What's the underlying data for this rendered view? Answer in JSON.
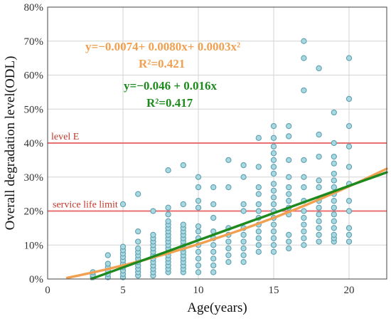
{
  "chart_data": {
    "type": "scatter",
    "xlabel": "Age(years)",
    "ylabel": "Overall degradation level(ODL)",
    "xlim": [
      0,
      22.5
    ],
    "ylim": [
      0,
      0.8
    ],
    "x_ticks": [
      0,
      5,
      10,
      15,
      20
    ],
    "y_ticks": [
      0,
      0.1,
      0.2,
      0.3,
      0.4,
      0.5,
      0.6,
      0.7,
      0.8
    ],
    "x_tick_labels": [
      "0",
      "5",
      "10",
      "15",
      "20"
    ],
    "y_tick_labels": [
      "0%",
      "10%",
      "20%",
      "30%",
      "40%",
      "50%",
      "60%",
      "70%",
      "80%"
    ],
    "grid": true,
    "reference_lines": [
      {
        "label": "level E",
        "y": 0.4,
        "color": "#e87070"
      },
      {
        "label": "service life limit",
        "y": 0.2,
        "color": "#e87070"
      }
    ],
    "fits": [
      {
        "equation": "y=−0.0074+ 0.0080x+ 0.0003x²",
        "r2_label": "R²=0.421",
        "color": "#f0a050",
        "coefficients": [
          -0.0074,
          0.008,
          0.0003
        ],
        "x_range": [
          1.3,
          22.5
        ]
      },
      {
        "equation": "y=−0.046 + 0.016x",
        "r2_label": "R²=0.417",
        "color": "#1e8a1e",
        "coefficients": [
          -0.046,
          0.016
        ],
        "x_range": [
          2.9,
          22.5
        ]
      }
    ],
    "series": [
      {
        "marker_fill": "#a8d8e0",
        "marker_stroke": "#5f9fb0",
        "points": [
          [
            3,
            0.005
          ],
          [
            3,
            0.012
          ],
          [
            3,
            0.02
          ],
          [
            4,
            0.005
          ],
          [
            4,
            0.015
          ],
          [
            4,
            0.025
          ],
          [
            4,
            0.035
          ],
          [
            4,
            0.045
          ],
          [
            4,
            0.07
          ],
          [
            5,
            0.005
          ],
          [
            5,
            0.015
          ],
          [
            5,
            0.025
          ],
          [
            5,
            0.035
          ],
          [
            5,
            0.045
          ],
          [
            5,
            0.055
          ],
          [
            5,
            0.065
          ],
          [
            5,
            0.075
          ],
          [
            5,
            0.085
          ],
          [
            5,
            0.095
          ],
          [
            5,
            0.22
          ],
          [
            6,
            0.01
          ],
          [
            6,
            0.02
          ],
          [
            6,
            0.03
          ],
          [
            6,
            0.04
          ],
          [
            6,
            0.05
          ],
          [
            6,
            0.06
          ],
          [
            6,
            0.07
          ],
          [
            6,
            0.08
          ],
          [
            6,
            0.09
          ],
          [
            6,
            0.11
          ],
          [
            6,
            0.14
          ],
          [
            6,
            0.25
          ],
          [
            7,
            0.01
          ],
          [
            7,
            0.02
          ],
          [
            7,
            0.03
          ],
          [
            7,
            0.04
          ],
          [
            7,
            0.05
          ],
          [
            7,
            0.06
          ],
          [
            7,
            0.07
          ],
          [
            7,
            0.08
          ],
          [
            7,
            0.09
          ],
          [
            7,
            0.1
          ],
          [
            7,
            0.11
          ],
          [
            7,
            0.12
          ],
          [
            7,
            0.13
          ],
          [
            7,
            0.2
          ],
          [
            8,
            0.02
          ],
          [
            8,
            0.03
          ],
          [
            8,
            0.04
          ],
          [
            8,
            0.05
          ],
          [
            8,
            0.06
          ],
          [
            8,
            0.07
          ],
          [
            8,
            0.08
          ],
          [
            8,
            0.09
          ],
          [
            8,
            0.1
          ],
          [
            8,
            0.11
          ],
          [
            8,
            0.12
          ],
          [
            8,
            0.13
          ],
          [
            8,
            0.14
          ],
          [
            8,
            0.15
          ],
          [
            8,
            0.16
          ],
          [
            8,
            0.17
          ],
          [
            8,
            0.19
          ],
          [
            8,
            0.21
          ],
          [
            8,
            0.32
          ],
          [
            9,
            0.02
          ],
          [
            9,
            0.03
          ],
          [
            9,
            0.04
          ],
          [
            9,
            0.05
          ],
          [
            9,
            0.06
          ],
          [
            9,
            0.07
          ],
          [
            9,
            0.08
          ],
          [
            9,
            0.09
          ],
          [
            9,
            0.1
          ],
          [
            9,
            0.11
          ],
          [
            9,
            0.12
          ],
          [
            9,
            0.13
          ],
          [
            9,
            0.14
          ],
          [
            9,
            0.15
          ],
          [
            9,
            0.16
          ],
          [
            9,
            0.22
          ],
          [
            9,
            0.335
          ],
          [
            10,
            0.02
          ],
          [
            10,
            0.04
          ],
          [
            10,
            0.06
          ],
          [
            10,
            0.08
          ],
          [
            10,
            0.1
          ],
          [
            10,
            0.12
          ],
          [
            10,
            0.14
          ],
          [
            10,
            0.155
          ],
          [
            10,
            0.21
          ],
          [
            10,
            0.23
          ],
          [
            10,
            0.27
          ],
          [
            10,
            0.3
          ],
          [
            11,
            0.02
          ],
          [
            11,
            0.04
          ],
          [
            11,
            0.06
          ],
          [
            11,
            0.08
          ],
          [
            11,
            0.1
          ],
          [
            11,
            0.12
          ],
          [
            11,
            0.14
          ],
          [
            11,
            0.18
          ],
          [
            11,
            0.22
          ],
          [
            11,
            0.27
          ],
          [
            12,
            0.05
          ],
          [
            12,
            0.07
          ],
          [
            12,
            0.09
          ],
          [
            12,
            0.11
          ],
          [
            12,
            0.13
          ],
          [
            12,
            0.15
          ],
          [
            12,
            0.27
          ],
          [
            12,
            0.35
          ],
          [
            13,
            0.05
          ],
          [
            13,
            0.07
          ],
          [
            13,
            0.09
          ],
          [
            13,
            0.11
          ],
          [
            13,
            0.13
          ],
          [
            13,
            0.15
          ],
          [
            13,
            0.2
          ],
          [
            13,
            0.22
          ],
          [
            13,
            0.3
          ],
          [
            13,
            0.335
          ],
          [
            14,
            0.08
          ],
          [
            14,
            0.1
          ],
          [
            14,
            0.12
          ],
          [
            14,
            0.14
          ],
          [
            14,
            0.16
          ],
          [
            14,
            0.18
          ],
          [
            14,
            0.2
          ],
          [
            14,
            0.22
          ],
          [
            14,
            0.25
          ],
          [
            14,
            0.27
          ],
          [
            14,
            0.33
          ],
          [
            14,
            0.415
          ],
          [
            15,
            0.08
          ],
          [
            15,
            0.1
          ],
          [
            15,
            0.12
          ],
          [
            15,
            0.14
          ],
          [
            15,
            0.16
          ],
          [
            15,
            0.18
          ],
          [
            15,
            0.2
          ],
          [
            15,
            0.22
          ],
          [
            15,
            0.24
          ],
          [
            15,
            0.26
          ],
          [
            15,
            0.28
          ],
          [
            15,
            0.31
          ],
          [
            15,
            0.33
          ],
          [
            15,
            0.35
          ],
          [
            15,
            0.37
          ],
          [
            15,
            0.39
          ],
          [
            15,
            0.415
          ],
          [
            15,
            0.45
          ],
          [
            16,
            0.09
          ],
          [
            16,
            0.11
          ],
          [
            16,
            0.13
          ],
          [
            16,
            0.19
          ],
          [
            16,
            0.21
          ],
          [
            16,
            0.23
          ],
          [
            16,
            0.25
          ],
          [
            16,
            0.27
          ],
          [
            16,
            0.3
          ],
          [
            16,
            0.35
          ],
          [
            16,
            0.42
          ],
          [
            16,
            0.45
          ],
          [
            17,
            0.1
          ],
          [
            17,
            0.12
          ],
          [
            17,
            0.14
          ],
          [
            17,
            0.16
          ],
          [
            17,
            0.18
          ],
          [
            17,
            0.2
          ],
          [
            17,
            0.23
          ],
          [
            17,
            0.27
          ],
          [
            17,
            0.3
          ],
          [
            17,
            0.35
          ],
          [
            17,
            0.555
          ],
          [
            17,
            0.65
          ],
          [
            17,
            0.7
          ],
          [
            18,
            0.11
          ],
          [
            18,
            0.13
          ],
          [
            18,
            0.15
          ],
          [
            18,
            0.17
          ],
          [
            18,
            0.19
          ],
          [
            18,
            0.21
          ],
          [
            18,
            0.23
          ],
          [
            18,
            0.27
          ],
          [
            18,
            0.29
          ],
          [
            18,
            0.36
          ],
          [
            18,
            0.425
          ],
          [
            18,
            0.62
          ],
          [
            19,
            0.11
          ],
          [
            19,
            0.12
          ],
          [
            19,
            0.13
          ],
          [
            19,
            0.15
          ],
          [
            19,
            0.17
          ],
          [
            19,
            0.19
          ],
          [
            19,
            0.21
          ],
          [
            19,
            0.23
          ],
          [
            19,
            0.25
          ],
          [
            19,
            0.27
          ],
          [
            19,
            0.29
          ],
          [
            19,
            0.31
          ],
          [
            19,
            0.34
          ],
          [
            19,
            0.36
          ],
          [
            19,
            0.4
          ],
          [
            19,
            0.49
          ],
          [
            20,
            0.11
          ],
          [
            20,
            0.13
          ],
          [
            20,
            0.15
          ],
          [
            20,
            0.2
          ],
          [
            20,
            0.23
          ],
          [
            20,
            0.28
          ],
          [
            20,
            0.33
          ],
          [
            20,
            0.39
          ],
          [
            20,
            0.45
          ],
          [
            20,
            0.53
          ],
          [
            20,
            0.65
          ]
        ]
      }
    ]
  }
}
